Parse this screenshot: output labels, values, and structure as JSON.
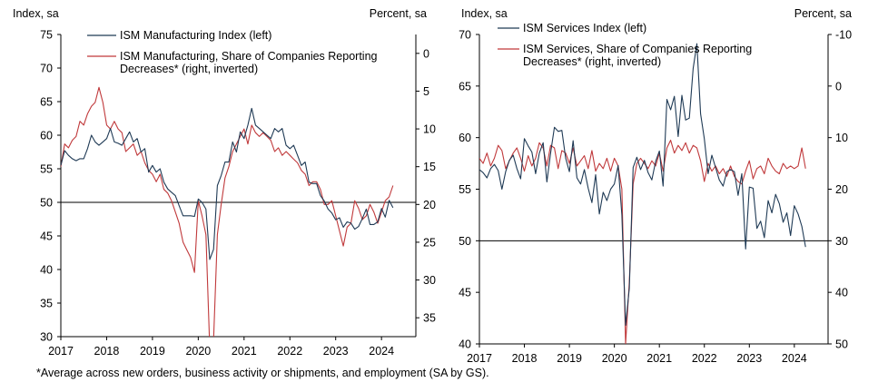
{
  "colors": {
    "left_series": "#1f3a55",
    "right_series": "#c0393b",
    "axis": "#000000"
  },
  "footnote": "*Average  across new orders, business activity or shipments, and employment (SA by GS).",
  "chart_data": [
    {
      "type": "line",
      "left_axis_label": "Index, sa",
      "right_axis_label": "Percent, sa",
      "x_ticks": [
        "2017",
        "2018",
        "2019",
        "2020",
        "2021",
        "2022",
        "2023",
        "2024"
      ],
      "x_range": [
        2017.0,
        2024.75
      ],
      "left_ylim": [
        30,
        75
      ],
      "left_ticks": [
        30,
        35,
        40,
        45,
        50,
        55,
        60,
        65,
        70,
        75
      ],
      "right_ylim": [
        -2.5,
        37.5
      ],
      "right_inverted": true,
      "right_ticks": [
        0,
        5,
        10,
        15,
        20,
        25,
        30,
        35
      ],
      "reference_line": 50,
      "legend_placement": "top",
      "series": [
        {
          "name": "ISM Manufacturing Index (left)",
          "axis": "left",
          "color": "#1f3a55",
          "x": [
            2017.0,
            2017.083,
            2017.167,
            2017.25,
            2017.333,
            2017.417,
            2017.5,
            2017.583,
            2017.667,
            2017.75,
            2017.833,
            2017.917,
            2018.0,
            2018.083,
            2018.167,
            2018.25,
            2018.333,
            2018.417,
            2018.5,
            2018.583,
            2018.667,
            2018.75,
            2018.833,
            2018.917,
            2019.0,
            2019.083,
            2019.167,
            2019.25,
            2019.333,
            2019.417,
            2019.5,
            2019.583,
            2019.667,
            2019.75,
            2019.833,
            2019.917,
            2020.0,
            2020.083,
            2020.167,
            2020.25,
            2020.333,
            2020.417,
            2020.5,
            2020.583,
            2020.667,
            2020.75,
            2020.833,
            2020.917,
            2021.0,
            2021.083,
            2021.167,
            2021.25,
            2021.333,
            2021.417,
            2021.5,
            2021.583,
            2021.667,
            2021.75,
            2021.833,
            2021.917,
            2022.0,
            2022.083,
            2022.167,
            2022.25,
            2022.333,
            2022.417,
            2022.5,
            2022.583,
            2022.667,
            2022.75,
            2022.833,
            2022.917,
            2023.0,
            2023.083,
            2023.167,
            2023.25,
            2023.333,
            2023.417,
            2023.5,
            2023.583,
            2023.667,
            2023.75,
            2023.833,
            2023.917,
            2024.0,
            2024.083,
            2024.167,
            2024.25
          ],
          "values": [
            55.5,
            57.7,
            57.0,
            56.5,
            56.2,
            56.5,
            56.5,
            58.0,
            60.0,
            59.0,
            58.5,
            59.0,
            59.5,
            61.0,
            59.0,
            58.8,
            58.5,
            59.5,
            60.5,
            59.0,
            59.5,
            57.5,
            58.0,
            54.5,
            55.5,
            54.5,
            55.0,
            53.0,
            52.0,
            51.5,
            51.0,
            49.5,
            48.0,
            48.0,
            48.0,
            47.9,
            50.5,
            50.0,
            49.0,
            41.5,
            43.0,
            52.5,
            54.0,
            56.0,
            56.0,
            59.0,
            57.5,
            60.5,
            59.5,
            61.5,
            64.0,
            61.5,
            61.0,
            60.5,
            60.0,
            59.5,
            61.0,
            60.5,
            61.0,
            58.5,
            58.0,
            58.5,
            57.0,
            55.5,
            56.0,
            53.0,
            52.8,
            52.8,
            51.0,
            50.2,
            49.0,
            48.4,
            47.4,
            47.7,
            46.3,
            47.1,
            46.9,
            46.0,
            46.4,
            47.6,
            49.0,
            46.7,
            46.7,
            47.1,
            49.1,
            47.8,
            50.3,
            49.2
          ]
        },
        {
          "name": "ISM Manufacturing, Share of Companies Reporting Decreases* (right, inverted)",
          "axis": "right",
          "color": "#c0393b",
          "x": [
            2017.0,
            2017.083,
            2017.167,
            2017.25,
            2017.333,
            2017.417,
            2017.5,
            2017.583,
            2017.667,
            2017.75,
            2017.833,
            2017.917,
            2018.0,
            2018.083,
            2018.167,
            2018.25,
            2018.333,
            2018.417,
            2018.5,
            2018.583,
            2018.667,
            2018.75,
            2018.833,
            2018.917,
            2019.0,
            2019.083,
            2019.167,
            2019.25,
            2019.333,
            2019.417,
            2019.5,
            2019.583,
            2019.667,
            2019.75,
            2019.833,
            2019.917,
            2020.0,
            2020.083,
            2020.167,
            2020.25,
            2020.333,
            2020.417,
            2020.5,
            2020.583,
            2020.667,
            2020.75,
            2020.833,
            2020.917,
            2021.0,
            2021.083,
            2021.167,
            2021.25,
            2021.333,
            2021.417,
            2021.5,
            2021.583,
            2021.667,
            2021.75,
            2021.833,
            2021.917,
            2022.0,
            2022.083,
            2022.167,
            2022.25,
            2022.333,
            2022.417,
            2022.5,
            2022.583,
            2022.667,
            2022.75,
            2022.833,
            2022.917,
            2023.0,
            2023.083,
            2023.167,
            2023.25,
            2023.333,
            2023.417,
            2023.5,
            2023.583,
            2023.667,
            2023.75,
            2023.833,
            2023.917,
            2024.0,
            2024.083,
            2024.167,
            2024.25
          ],
          "values": [
            15.0,
            12.0,
            12.5,
            11.5,
            11.0,
            9.0,
            9.5,
            8.0,
            7.0,
            6.5,
            4.5,
            6.5,
            9.5,
            10.0,
            9.0,
            10.0,
            10.5,
            13.0,
            12.5,
            12.0,
            13.5,
            13.0,
            14.5,
            15.5,
            16.0,
            17.0,
            16.0,
            18.0,
            18.5,
            19.5,
            21.0,
            22.5,
            25.0,
            26.0,
            27.0,
            29.0,
            19.5,
            21.5,
            24.0,
            39.0,
            38.0,
            24.0,
            20.0,
            16.5,
            15.0,
            13.0,
            12.0,
            11.0,
            10.0,
            12.0,
            9.5,
            10.5,
            11.0,
            10.5,
            11.0,
            11.5,
            13.0,
            12.5,
            13.5,
            13.0,
            13.5,
            14.0,
            14.5,
            15.5,
            16.0,
            17.5,
            17.0,
            17.0,
            18.0,
            20.0,
            20.0,
            19.5,
            21.5,
            23.5,
            25.5,
            23.0,
            22.5,
            19.5,
            20.5,
            22.0,
            21.5,
            20.0,
            21.0,
            22.5,
            21.0,
            19.5,
            19.0,
            17.5
          ]
        }
      ]
    },
    {
      "type": "line",
      "left_axis_label": "Index, sa",
      "right_axis_label": "Percent, sa",
      "x_ticks": [
        "2017",
        "2018",
        "2019",
        "2020",
        "2021",
        "2022",
        "2023",
        "2024"
      ],
      "x_range": [
        2017.0,
        2024.75
      ],
      "left_ylim": [
        40,
        70
      ],
      "left_ticks": [
        40,
        45,
        50,
        55,
        60,
        65,
        70
      ],
      "right_ylim": [
        -10,
        50
      ],
      "right_inverted": true,
      "right_ticks": [
        -10,
        0,
        10,
        20,
        30,
        40,
        50
      ],
      "reference_line": 50,
      "legend_placement": "top",
      "series": [
        {
          "name": "ISM Services Index (left)",
          "axis": "left",
          "color": "#1f3a55",
          "x": [
            2017.0,
            2017.083,
            2017.167,
            2017.25,
            2017.333,
            2017.417,
            2017.5,
            2017.583,
            2017.667,
            2017.75,
            2017.833,
            2017.917,
            2018.0,
            2018.083,
            2018.167,
            2018.25,
            2018.333,
            2018.417,
            2018.5,
            2018.583,
            2018.667,
            2018.75,
            2018.833,
            2018.917,
            2019.0,
            2019.083,
            2019.167,
            2019.25,
            2019.333,
            2019.417,
            2019.5,
            2019.583,
            2019.667,
            2019.75,
            2019.833,
            2019.917,
            2020.0,
            2020.083,
            2020.167,
            2020.25,
            2020.333,
            2020.417,
            2020.5,
            2020.583,
            2020.667,
            2020.75,
            2020.833,
            2020.917,
            2021.0,
            2021.083,
            2021.167,
            2021.25,
            2021.333,
            2021.417,
            2021.5,
            2021.583,
            2021.667,
            2021.75,
            2021.833,
            2021.917,
            2022.0,
            2022.083,
            2022.167,
            2022.25,
            2022.333,
            2022.417,
            2022.5,
            2022.583,
            2022.667,
            2022.75,
            2022.833,
            2022.917,
            2023.0,
            2023.083,
            2023.167,
            2023.25,
            2023.333,
            2023.417,
            2023.5,
            2023.583,
            2023.667,
            2023.75,
            2023.833,
            2023.917,
            2024.0,
            2024.083,
            2024.167,
            2024.25
          ],
          "values": [
            56.9,
            56.6,
            56.1,
            57.0,
            57.4,
            56.8,
            55.0,
            56.7,
            57.8,
            58.3,
            57.0,
            56.0,
            59.9,
            59.2,
            58.6,
            56.5,
            58.5,
            59.5,
            55.7,
            58.5,
            61.0,
            60.6,
            60.7,
            58.0,
            56.7,
            59.7,
            56.1,
            55.5,
            56.9,
            55.1,
            53.7,
            56.4,
            52.6,
            54.7,
            53.9,
            55.0,
            55.5,
            57.3,
            52.5,
            41.8,
            45.4,
            57.1,
            58.1,
            56.9,
            57.8,
            56.6,
            55.9,
            57.7,
            58.7,
            55.3,
            63.7,
            62.7,
            64.0,
            60.1,
            64.1,
            61.7,
            61.9,
            66.7,
            69.1,
            62.3,
            59.9,
            56.5,
            58.3,
            57.1,
            55.9,
            55.3,
            56.7,
            56.9,
            56.7,
            54.4,
            56.5,
            49.2,
            55.2,
            55.1,
            51.2,
            51.9,
            50.3,
            53.9,
            52.7,
            54.5,
            53.6,
            51.8,
            52.7,
            50.5,
            53.4,
            52.6,
            51.4,
            49.4
          ]
        },
        {
          "name": "ISM Services, Share of Companies Reporting Decreases* (right, inverted)",
          "axis": "right",
          "color": "#c0393b",
          "x": [
            2017.0,
            2017.083,
            2017.167,
            2017.25,
            2017.333,
            2017.417,
            2017.5,
            2017.583,
            2017.667,
            2017.75,
            2017.833,
            2017.917,
            2018.0,
            2018.083,
            2018.167,
            2018.25,
            2018.333,
            2018.417,
            2018.5,
            2018.583,
            2018.667,
            2018.75,
            2018.833,
            2018.917,
            2019.0,
            2019.083,
            2019.167,
            2019.25,
            2019.333,
            2019.417,
            2019.5,
            2019.583,
            2019.667,
            2019.75,
            2019.833,
            2019.917,
            2020.0,
            2020.083,
            2020.167,
            2020.25,
            2020.333,
            2020.417,
            2020.5,
            2020.583,
            2020.667,
            2020.75,
            2020.833,
            2020.917,
            2021.0,
            2021.083,
            2021.167,
            2021.25,
            2021.333,
            2021.417,
            2021.5,
            2021.583,
            2021.667,
            2021.75,
            2021.833,
            2021.917,
            2022.0,
            2022.083,
            2022.167,
            2022.25,
            2022.333,
            2022.417,
            2022.5,
            2022.583,
            2022.667,
            2022.75,
            2022.833,
            2022.917,
            2023.0,
            2023.083,
            2023.167,
            2023.25,
            2023.333,
            2023.417,
            2023.5,
            2023.583,
            2023.667,
            2023.75,
            2023.833,
            2023.917,
            2024.0,
            2024.083,
            2024.167,
            2024.25
          ],
          "values": [
            14.0,
            15.0,
            13.0,
            15.5,
            14.0,
            11.5,
            12.5,
            16.0,
            14.5,
            13.0,
            12.0,
            14.0,
            16.5,
            13.5,
            15.5,
            14.0,
            11.0,
            12.0,
            15.5,
            11.5,
            12.0,
            16.0,
            12.5,
            13.0,
            15.0,
            12.0,
            15.5,
            14.5,
            13.5,
            16.0,
            12.5,
            16.5,
            15.0,
            16.0,
            14.0,
            16.5,
            14.0,
            15.5,
            20.0,
            50.0,
            38.0,
            19.0,
            15.0,
            14.0,
            15.0,
            16.0,
            14.5,
            15.5,
            13.0,
            16.5,
            12.0,
            10.5,
            13.0,
            11.5,
            12.5,
            11.0,
            13.0,
            11.5,
            12.0,
            14.5,
            18.5,
            15.0,
            16.5,
            15.5,
            17.0,
            16.0,
            17.5,
            15.5,
            17.5,
            18.5,
            19.0,
            16.5,
            14.5,
            18.0,
            16.0,
            15.5,
            17.0,
            14.0,
            15.5,
            16.5,
            17.0,
            15.0,
            16.0,
            15.5,
            16.0,
            15.5,
            12.0,
            16.0
          ]
        }
      ]
    }
  ]
}
